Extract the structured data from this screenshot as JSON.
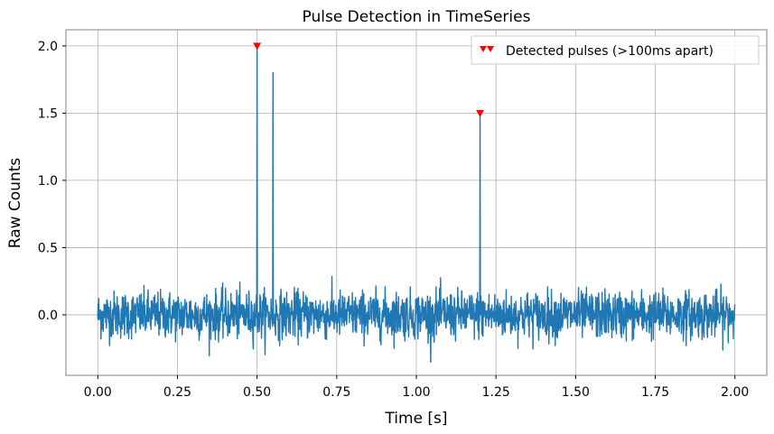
{
  "chart_data": {
    "type": "line",
    "title": "Pulse Detection in TimeSeries",
    "xlabel": "Time [s]",
    "ylabel": "Raw Counts",
    "xlim": [
      -0.1,
      2.1
    ],
    "ylim": [
      -0.45,
      2.12
    ],
    "x_ticks": [
      "0.00",
      "0.25",
      "0.50",
      "0.75",
      "1.00",
      "1.25",
      "1.50",
      "1.75",
      "2.00"
    ],
    "y_ticks": [
      "0.0",
      "0.5",
      "1.0",
      "1.5",
      "2.0"
    ],
    "grid": true,
    "legend_position": "top-right",
    "series": [
      {
        "kind": "line",
        "color": "#1f77b4",
        "x_range": [
          0.0,
          2.0
        ],
        "noise_amplitude_approx": 0.35,
        "baseline": 0.0,
        "spikes": [
          {
            "x": 0.5,
            "y": 2.0
          },
          {
            "x": 0.55,
            "y": 1.8
          },
          {
            "x": 1.2,
            "y": 1.5
          }
        ]
      },
      {
        "kind": "markers",
        "name": "Detected pulses (>100ms apart)",
        "marker": "triangle-down",
        "color": "#ff0000",
        "points": [
          {
            "x": 0.5,
            "y": 2.0
          },
          {
            "x": 1.2,
            "y": 1.5
          }
        ]
      }
    ]
  }
}
